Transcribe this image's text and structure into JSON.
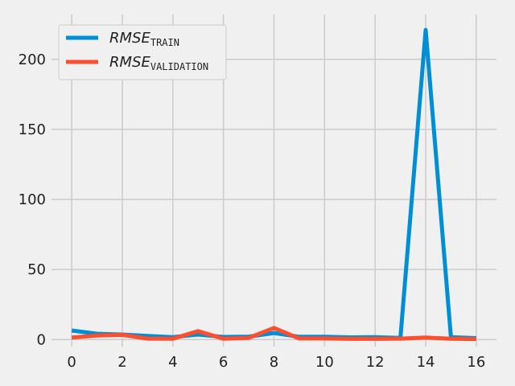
{
  "chart_data": {
    "type": "line",
    "x": [
      0,
      1,
      2,
      3,
      4,
      5,
      6,
      7,
      8,
      9,
      10,
      11,
      12,
      13,
      14,
      15,
      16
    ],
    "series": [
      {
        "name_main": "RMSE",
        "name_sub": "TRAIN",
        "color": "#008fd5",
        "values": [
          6.5,
          4.2,
          3.6,
          2.6,
          1.8,
          3.6,
          1.9,
          2.1,
          4.7,
          2.0,
          2.0,
          1.6,
          1.7,
          1.2,
          221.0,
          1.8,
          1.0
        ]
      },
      {
        "name_main": "RMSE",
        "name_sub": "VALIDATION",
        "color": "#fc4f30",
        "values": [
          1.4,
          2.9,
          3.4,
          0.7,
          0.6,
          6.0,
          0.6,
          1.2,
          8.3,
          0.8,
          0.8,
          0.5,
          0.5,
          0.7,
          1.4,
          0.6,
          0.4
        ]
      }
    ],
    "xlim": [
      -0.8,
      16.8
    ],
    "ylim": [
      -5,
      232
    ],
    "xticks": [
      0,
      2,
      4,
      6,
      8,
      10,
      12,
      14,
      16
    ],
    "yticks": [
      0,
      50,
      100,
      150,
      200
    ],
    "grid": true,
    "legend_position": "top-left",
    "title": "",
    "xlabel": "",
    "ylabel": ""
  }
}
